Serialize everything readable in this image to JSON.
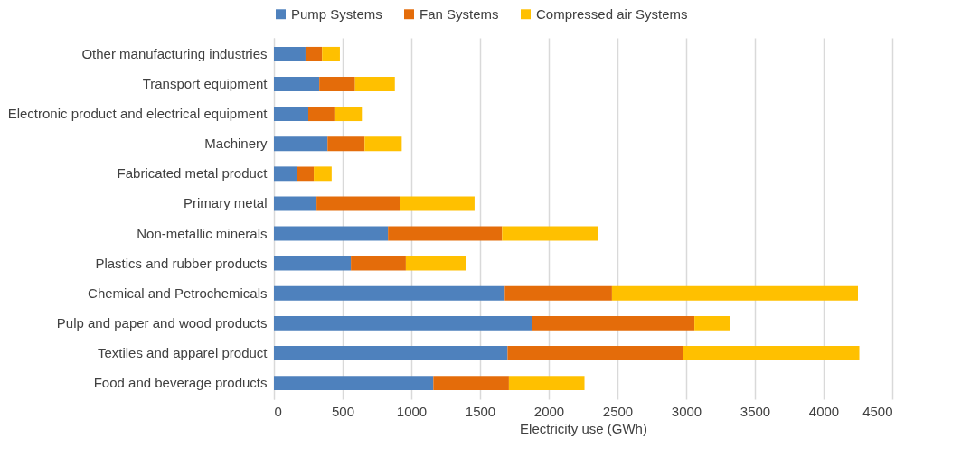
{
  "chart_data": {
    "type": "bar",
    "orientation": "horizontal",
    "stacked": true,
    "xlabel": "Electricity use (GWh)",
    "categories": [
      "Other manufacturing industries",
      "Transport equipment ",
      "Electronic product and electrical equipment ",
      "Machinery",
      "Fabricated metal product",
      "Primary metal",
      "Non-metallic minerals",
      "Plastics and rubber products",
      "Chemical and Petrochemicals",
      "Pulp and paper and wood products",
      "Textiles and apparel product",
      "Food and beverage products"
    ],
    "series": [
      {
        "name": "Pump Systems",
        "color": "#4e81bd",
        "values": [
          230,
          330,
          250,
          390,
          170,
          310,
          830,
          560,
          1680,
          1880,
          1700,
          1160
        ]
      },
      {
        "name": "Fan Systems",
        "color": "#e46c0a",
        "values": [
          120,
          260,
          190,
          270,
          120,
          610,
          830,
          400,
          780,
          1180,
          1280,
          550
        ]
      },
      {
        "name": "Compressed air Systems",
        "color": "#ffc000",
        "values": [
          130,
          290,
          200,
          270,
          130,
          540,
          700,
          440,
          1790,
          260,
          1280,
          550
        ]
      }
    ],
    "xlim": [
      0,
      4500
    ],
    "xticks": [
      0,
      500,
      1000,
      1500,
      2000,
      2500,
      3000,
      3500,
      4000,
      4500
    ],
    "grid": "x",
    "legend": "top"
  }
}
